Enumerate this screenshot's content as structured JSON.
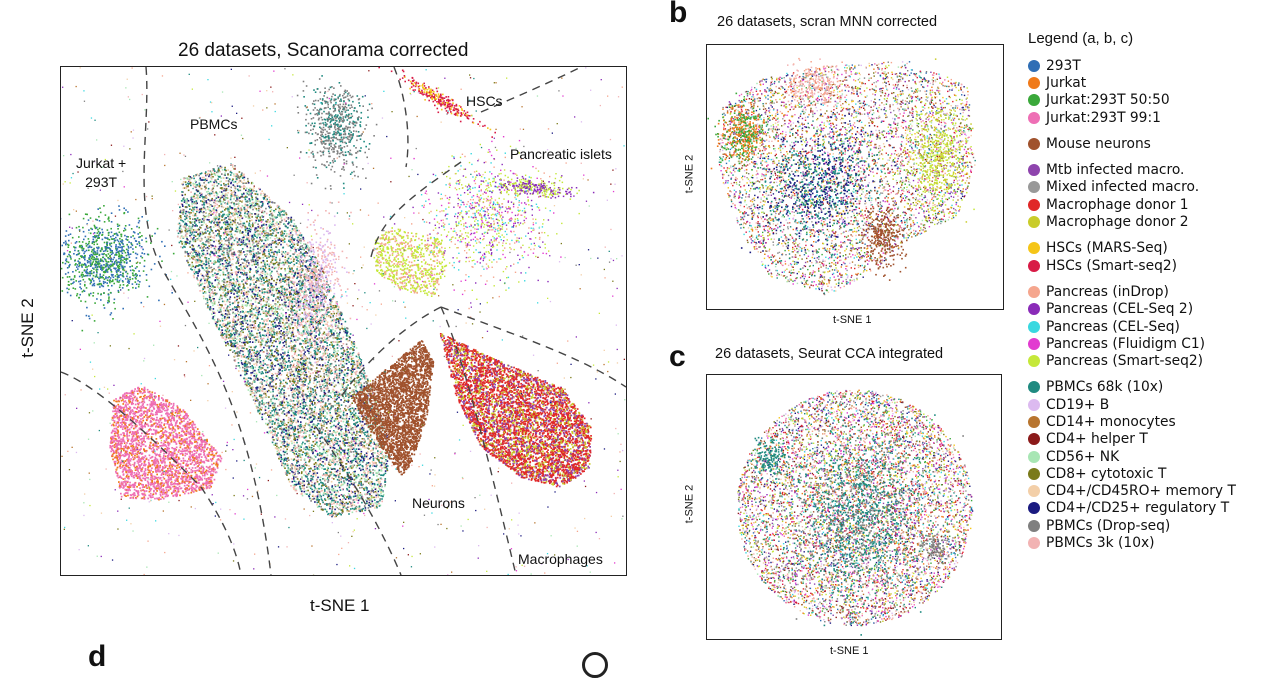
{
  "panel_a": {
    "title": "26 datasets, Scanorama corrected",
    "xlabel": "t-SNE 1",
    "ylabel": "t-SNE 2",
    "regions": {
      "jurkat": "Jurkat +\n293T",
      "pbmcs": "PBMCs",
      "hscs": "HSCs",
      "pancreatic": "Pancreatic islets",
      "neurons": "Neurons",
      "macrophages": "Macrophages"
    }
  },
  "panel_b": {
    "letter": "b",
    "title": "26 datasets, scran MNN corrected",
    "xlabel": "t-SNE 1",
    "ylabel": "t-SNE 2"
  },
  "panel_c": {
    "letter": "c",
    "title": "26 datasets, Seurat CCA integrated",
    "xlabel": "t-SNE 1",
    "ylabel": "t-SNE 2"
  },
  "panel_d": {
    "letter": "d"
  },
  "legend": {
    "title": "Legend (a, b, c)",
    "groups": [
      [
        {
          "label": "293T",
          "color": "#2f6eb5"
        },
        {
          "label": "Jurkat",
          "color": "#f07a1a"
        },
        {
          "label": "Jurkat:293T 50:50",
          "color": "#3aa83a"
        },
        {
          "label": "Jurkat:293T 99:1",
          "color": "#ee6fb5"
        }
      ],
      [
        {
          "label": "Mouse neurons",
          "color": "#a0522d"
        }
      ],
      [
        {
          "label": "Mtb infected macro.",
          "color": "#8e44ad"
        },
        {
          "label": "Mixed infected macro.",
          "color": "#999999"
        },
        {
          "label": "Macrophage donor 1",
          "color": "#e02828"
        },
        {
          "label": "Macrophage donor 2",
          "color": "#c9cc2a"
        }
      ],
      [
        {
          "label": "HSCs (MARS-Seq)",
          "color": "#f5c518"
        },
        {
          "label": "HSCs (Smart-seq2)",
          "color": "#d81b46"
        }
      ],
      [
        {
          "label": "Pancreas (inDrop)",
          "color": "#f5a68e"
        },
        {
          "label": "Pancreas (CEL-Seq 2)",
          "color": "#8a2bb8"
        },
        {
          "label": "Pancreas (CEL-Seq)",
          "color": "#3ad8e0"
        },
        {
          "label": "Pancreas (Fluidigm C1)",
          "color": "#e23bd0"
        },
        {
          "label": "Pancreas (Smart-seq2)",
          "color": "#c5e83a"
        }
      ],
      [
        {
          "label": "PBMCs 68k (10x)",
          "color": "#1f8a80"
        },
        {
          "label": "CD19+ B",
          "color": "#dcbaf0"
        },
        {
          "label": "CD14+ monocytes",
          "color": "#b8752f"
        },
        {
          "label": "CD4+ helper T",
          "color": "#8b1a1a"
        },
        {
          "label": "CD56+ NK",
          "color": "#a8e6b4"
        },
        {
          "label": "CD8+ cytotoxic T",
          "color": "#7a7a1a"
        },
        {
          "label": "CD4+/CD45RO+ memory T",
          "color": "#f3cfa8"
        },
        {
          "label": "CD4+/CD25+ regulatory T",
          "color": "#1a1a80"
        },
        {
          "label": "PBMCs (Drop-seq)",
          "color": "#7f7f7f"
        },
        {
          "label": "PBMCs 3k (10x)",
          "color": "#f2b3b3"
        }
      ]
    ]
  }
}
